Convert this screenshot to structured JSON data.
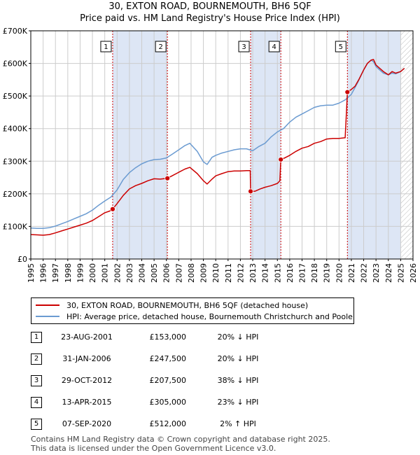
{
  "title_line1": "30, EXTON ROAD, BOURNEMOUTH, BH6 5QF",
  "title_line2": "Price paid vs. HM Land Registry's House Price Index (HPI)",
  "colors": {
    "price_line": "#cc0000",
    "hpi_line": "#6b9bd1",
    "shade": "#dde6f5",
    "marker_border": "#cc0000",
    "hatch": "#bbbbbb"
  },
  "legend": {
    "price_label": "30, EXTON ROAD, BOURNEMOUTH, BH6 5QF (detached house)",
    "hpi_label": "HPI: Average price, detached house, Bournemouth Christchurch and Poole"
  },
  "transactions": [
    {
      "num": "1",
      "date": "23-AUG-2001",
      "price": "£153,000",
      "hpi": "20% ↓ HPI"
    },
    {
      "num": "2",
      "date": "31-JAN-2006",
      "price": "£247,500",
      "hpi": "20% ↓ HPI"
    },
    {
      "num": "3",
      "date": "29-OCT-2012",
      "price": "£207,500",
      "hpi": "38% ↓ HPI"
    },
    {
      "num": "4",
      "date": "13-APR-2015",
      "price": "£305,000",
      "hpi": "23% ↓ HPI"
    },
    {
      "num": "5",
      "date": "07-SEP-2020",
      "price": "£512,000",
      "hpi": "2% ↑ HPI"
    }
  ],
  "footer": {
    "line1": "Contains HM Land Registry data © Crown copyright and database right 2025.",
    "line2": "This data is licensed under the Open Government Licence v3.0."
  },
  "chart_data": {
    "type": "line",
    "title": "30, EXTON ROAD, BOURNEMOUTH, BH6 5QF — Price paid vs. HM Land Registry's House Price Index (HPI)",
    "xlabel": "",
    "ylabel": "",
    "xlim": [
      1995,
      2026
    ],
    "ylim": [
      0,
      700000
    ],
    "x_ticks": [
      1995,
      1996,
      1997,
      1998,
      1999,
      2000,
      2001,
      2002,
      2003,
      2004,
      2005,
      2006,
      2007,
      2008,
      2009,
      2010,
      2011,
      2012,
      2013,
      2014,
      2015,
      2016,
      2017,
      2018,
      2019,
      2020,
      2021,
      2022,
      2023,
      2024,
      2025,
      2026
    ],
    "y_ticks": [
      0,
      100000,
      200000,
      300000,
      400000,
      500000,
      600000,
      700000
    ],
    "y_tick_labels": [
      "£0",
      "£100K",
      "£200K",
      "£300K",
      "£400K",
      "£500K",
      "£600K",
      "£700K"
    ],
    "grid": true,
    "shaded_periods": [
      [
        2001.64,
        2006.08
      ],
      [
        2012.83,
        2015.28
      ],
      [
        2020.68,
        2025.0
      ]
    ],
    "hatched_from": 2025.0,
    "sales": [
      {
        "label": "1",
        "x": 2001.64,
        "y": 153000
      },
      {
        "label": "2",
        "x": 2006.08,
        "y": 247500
      },
      {
        "label": "3",
        "x": 2012.83,
        "y": 207500
      },
      {
        "label": "4",
        "x": 2015.28,
        "y": 305000
      },
      {
        "label": "5",
        "x": 2020.68,
        "y": 512000
      }
    ],
    "series": [
      {
        "name": "30, EXTON ROAD, BOURNEMOUTH, BH6 5QF (detached house)",
        "color": "#cc0000",
        "x": [
          1995,
          1995.5,
          1996,
          1996.5,
          1997,
          1997.5,
          1998,
          1998.5,
          1999,
          1999.5,
          2000,
          2000.5,
          2001,
          2001.4,
          2001.64,
          2002,
          2002.5,
          2003,
          2003.5,
          2004,
          2004.5,
          2005,
          2005.5,
          2006.08,
          2006.5,
          2007,
          2007.5,
          2007.9,
          2008.5,
          2009,
          2009.3,
          2009.7,
          2010,
          2010.5,
          2011,
          2011.5,
          2012,
          2012.5,
          2012.8,
          2012.83,
          2013.2,
          2013.6,
          2014,
          2014.5,
          2015,
          2015.2,
          2015.28,
          2015.6,
          2016,
          2016.5,
          2017,
          2017.5,
          2018,
          2018.5,
          2019,
          2019.5,
          2020,
          2020.5,
          2020.6,
          2020.68,
          2021,
          2021.3,
          2021.6,
          2022,
          2022.3,
          2022.6,
          2022.8,
          2023,
          2023.3,
          2023.6,
          2024,
          2024.3,
          2024.6,
          2025,
          2025.3
        ],
        "y": [
          75000,
          74000,
          73000,
          75000,
          80000,
          86000,
          92000,
          98000,
          104000,
          110000,
          118000,
          130000,
          142000,
          147000,
          153000,
          170000,
          195000,
          215000,
          225000,
          232000,
          240000,
          246000,
          245000,
          247500,
          256000,
          266000,
          276000,
          281000,
          262000,
          240000,
          230000,
          245000,
          255000,
          262000,
          268000,
          270000,
          270000,
          271000,
          271000,
          207500,
          208000,
          215000,
          220000,
          225000,
          232000,
          240000,
          305000,
          310000,
          318000,
          330000,
          340000,
          345000,
          355000,
          360000,
          368000,
          370000,
          370000,
          372000,
          450000,
          512000,
          520000,
          530000,
          550000,
          580000,
          600000,
          610000,
          612000,
          595000,
          585000,
          575000,
          565000,
          575000,
          570000,
          575000,
          585000
        ]
      },
      {
        "name": "HPI: Average price, detached house, Bournemouth Christchurch and Poole",
        "color": "#6b9bd1",
        "x": [
          1995,
          1995.5,
          1996,
          1996.5,
          1997,
          1997.5,
          1998,
          1998.5,
          1999,
          1999.5,
          2000,
          2000.5,
          2001,
          2001.5,
          2002,
          2002.5,
          2003,
          2003.5,
          2004,
          2004.5,
          2005,
          2005.5,
          2006,
          2006.5,
          2007,
          2007.5,
          2007.9,
          2008.5,
          2009,
          2009.3,
          2009.7,
          2010,
          2010.5,
          2011,
          2011.5,
          2012,
          2012.5,
          2013,
          2013.5,
          2014,
          2014.5,
          2015,
          2015.5,
          2016,
          2016.5,
          2017,
          2017.5,
          2018,
          2018.5,
          2019,
          2019.5,
          2020,
          2020.5,
          2021,
          2021.5,
          2022,
          2022.3,
          2022.6,
          2022.8,
          2023,
          2023.3,
          2023.6,
          2024,
          2024.3,
          2024.6,
          2025,
          2025.3
        ],
        "y": [
          95000,
          94000,
          94000,
          96000,
          101000,
          108000,
          115000,
          123000,
          131000,
          139000,
          150000,
          165000,
          178000,
          190000,
          212000,
          244000,
          265000,
          280000,
          292000,
          300000,
          305000,
          306000,
          310000,
          322000,
          335000,
          348000,
          355000,
          330000,
          298000,
          290000,
          312000,
          318000,
          325000,
          330000,
          335000,
          338000,
          338000,
          332000,
          345000,
          355000,
          375000,
          390000,
          400000,
          420000,
          435000,
          445000,
          455000,
          465000,
          470000,
          472000,
          472000,
          478000,
          488000,
          505000,
          540000,
          580000,
          600000,
          610000,
          605000,
          590000,
          580000,
          570000,
          565000,
          570000,
          568000,
          575000,
          585000
        ]
      }
    ]
  }
}
